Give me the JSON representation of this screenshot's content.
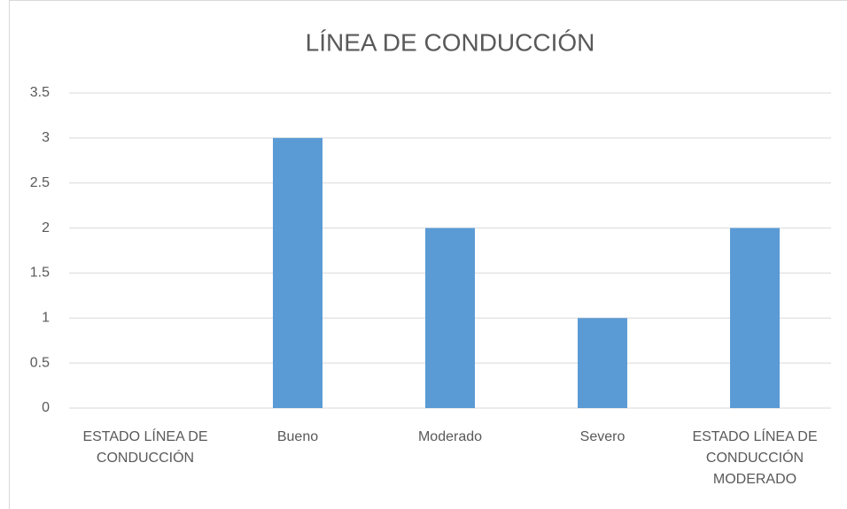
{
  "chart_data": {
    "type": "bar",
    "title": "LÍNEA DE CONDUCCIÓN",
    "categories": [
      "ESTADO LÍNEA DE CONDUCCIÓN",
      "Bueno",
      "Moderado",
      "Severo",
      "ESTADO LÍNEA DE CONDUCCIÓN MODERADO"
    ],
    "values": [
      null,
      3,
      2,
      1,
      2
    ],
    "color": "#5b9bd5",
    "ylim": [
      0,
      3.5
    ],
    "yticks": [
      0,
      0.5,
      1,
      1.5,
      2,
      2.5,
      3,
      3.5
    ],
    "grid": true
  }
}
